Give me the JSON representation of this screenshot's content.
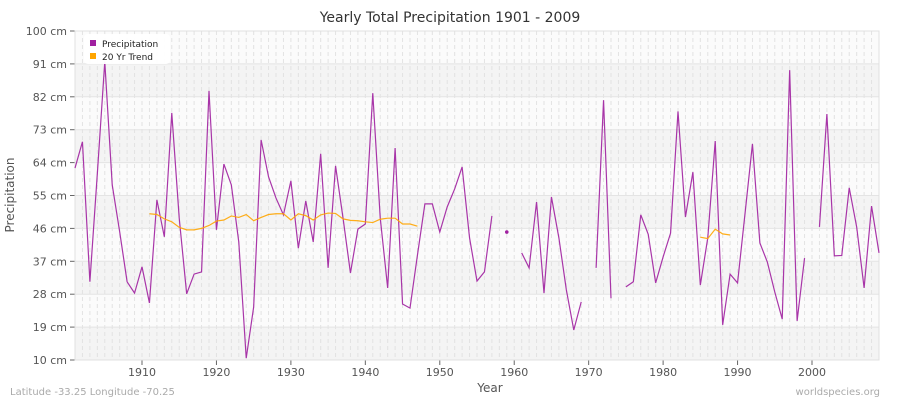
{
  "chart_data": {
    "type": "line",
    "title": "Yearly Total Precipitation 1901 - 2009",
    "xlabel": "Year",
    "ylabel": "Precipitation",
    "xlim": [
      1901,
      2009
    ],
    "ylim": [
      10,
      100
    ],
    "y_ticks": [
      "10 cm",
      "19 cm",
      "28 cm",
      "37 cm",
      "46 cm",
      "55 cm",
      "64 cm",
      "73 cm",
      "82 cm",
      "91 cm",
      "100 cm"
    ],
    "x_ticks": [
      "1910",
      "1920",
      "1930",
      "1940",
      "1950",
      "1960",
      "1970",
      "1980",
      "1990",
      "2000"
    ],
    "grid": true,
    "legend_position": "top-left",
    "series": [
      {
        "name": "Precipitation",
        "color": "#a020a0",
        "start_year": 1901,
        "values": [
          62.5,
          69.7,
          31.4,
          61,
          91.6,
          57.9,
          45.1,
          31.4,
          28.3,
          35.5,
          25.6,
          53.8,
          43.7,
          77.6,
          48.8,
          28.1,
          33.5,
          34.1,
          83.6,
          45.6,
          63.6,
          57.9,
          42.3,
          10.5,
          24.5,
          70.2,
          60.1,
          54.3,
          49.7,
          59,
          40.6,
          53.5,
          42.3,
          66.4,
          35.2,
          63.1,
          48.9,
          33.8,
          45.8,
          47.2,
          83,
          48.9,
          29.7,
          68,
          25.3,
          24.2,
          38.7,
          52.7,
          52.7,
          45,
          51.9,
          56.8,
          62.8,
          43.4,
          31.6,
          34.1,
          49.4,
          null,
          45,
          null,
          39.3,
          35.2,
          53.2,
          28.3,
          54.6,
          43.4,
          29.2,
          18.2,
          25.9,
          null,
          35.2,
          81.1,
          26.9,
          null,
          30,
          31.4,
          49.7,
          44.4,
          31.1,
          38.2,
          44.7,
          78,
          49.1,
          61.4,
          30.5,
          43.4,
          69.9,
          19.6,
          33.5,
          31.1,
          50,
          69.1,
          42,
          36.8,
          28.6,
          21.2,
          89.3,
          20.7,
          37.9,
          null,
          46.4,
          77.3,
          38.5,
          38.6,
          57.1,
          46.4,
          29.7,
          52.1,
          39.3
        ]
      },
      {
        "name": "20 Yr Trend",
        "color": "#ffa500",
        "start_year": 1911,
        "values": [
          50,
          49.8,
          48.6,
          47.8,
          46.3,
          45.6,
          45.6,
          46,
          46.8,
          48,
          48.3,
          49.4,
          49,
          49.8,
          48.1,
          49,
          49.8,
          50,
          50,
          48.3,
          50,
          49.5,
          48.3,
          49.7,
          50.2,
          50.1,
          48.6,
          48.2,
          48.1,
          47.8,
          47.6,
          48.5,
          48.8,
          48.8,
          47.2,
          47.2,
          46.6,
          null,
          null,
          null,
          null,
          null,
          null,
          null,
          null,
          null,
          null,
          null,
          null,
          null,
          null,
          null,
          null,
          null,
          null,
          null,
          null,
          null,
          null,
          null,
          null,
          null,
          null,
          null,
          null,
          null,
          null,
          null,
          null,
          null,
          null,
          null,
          null,
          null,
          43.6,
          43.2,
          45.8,
          44.5,
          44.2
        ]
      }
    ]
  },
  "footer": {
    "location": "Latitude -33.25 Longitude -70.25",
    "source": "worldspecies.org"
  }
}
